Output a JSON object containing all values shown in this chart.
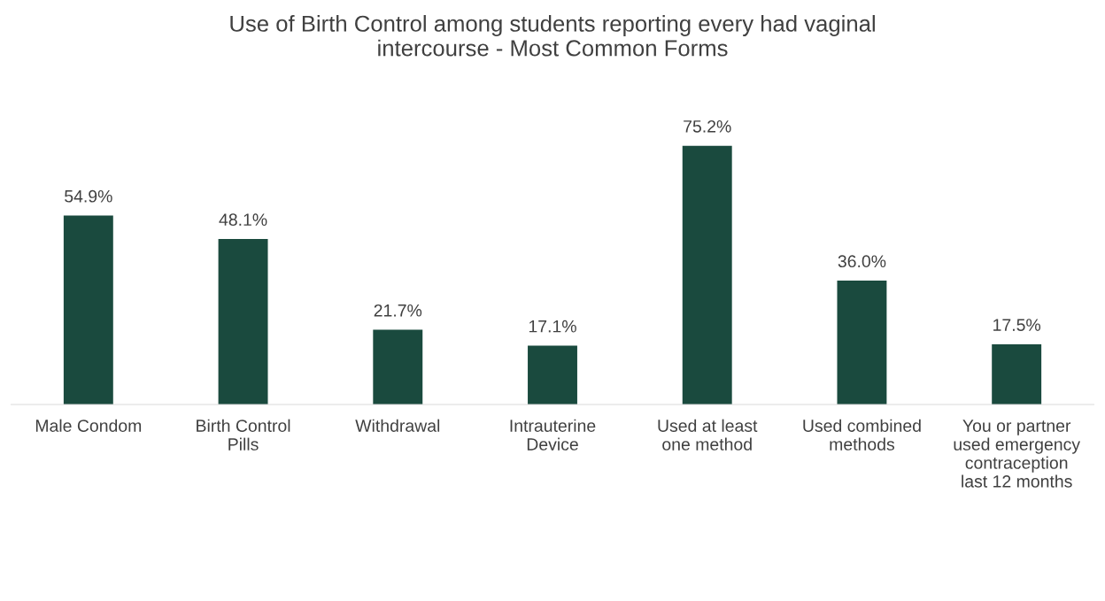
{
  "chart_data": {
    "type": "bar",
    "title": "Use of Birth Control among students reporting every had vaginal\nintercourse - Most Common Forms",
    "categories": [
      "Male Condom",
      "Birth Control\nPills",
      "Withdrawal",
      "Intrauterine\nDevice",
      "Used at least\none method",
      "Used combined\nmethods",
      "You or partner\nused emergency\ncontraception\nlast 12 months"
    ],
    "values": [
      54.9,
      48.1,
      21.7,
      17.1,
      75.2,
      36.0,
      17.5
    ],
    "value_labels": [
      "54.9%",
      "48.1%",
      "21.7%",
      "17.1%",
      "75.2%",
      "36.0%",
      "17.5%"
    ],
    "color": "#1a4a3e"
  }
}
